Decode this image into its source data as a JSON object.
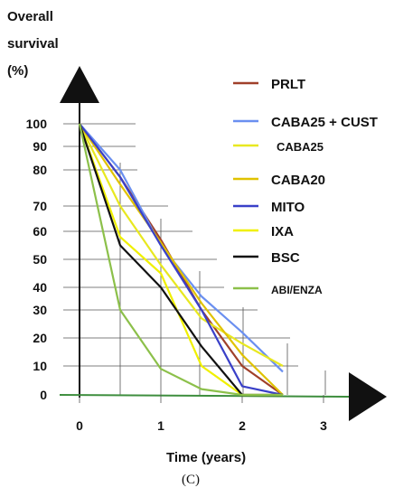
{
  "chart_data": {
    "type": "line",
    "ylabel_lines": [
      "Overall",
      "survival",
      "(%)"
    ],
    "xlabel": "Time (years)",
    "panel_label": "(C)",
    "x_ticks": [
      "0",
      "1",
      "2",
      "3"
    ],
    "y_ticks": [
      "100",
      "90",
      "80",
      "70",
      "60",
      "50",
      "40",
      "30",
      "20",
      "10",
      "0"
    ],
    "xlim": [
      0,
      3
    ],
    "ylim": [
      0,
      100
    ],
    "legend_position": "right",
    "grid": "partial horizontal and vertical reference lines",
    "series": [
      {
        "name": "PRLT",
        "color": "#a0402a",
        "x": [
          0,
          0.5,
          1,
          1.5,
          2,
          2.5
        ],
        "y": [
          100,
          78,
          57,
          30,
          10,
          0
        ]
      },
      {
        "name": "CABA25 + CUST",
        "color": "#6a8ff0",
        "x": [
          0,
          0.5,
          1,
          1.5,
          2,
          2.5
        ],
        "y": [
          100,
          80,
          55,
          36,
          22,
          8
        ]
      },
      {
        "name": "CABA25",
        "color": "#e8e820",
        "x": [
          0,
          0.5,
          1,
          1.5,
          2,
          2.5
        ],
        "y": [
          100,
          70,
          48,
          27,
          18,
          10
        ]
      },
      {
        "name": "CABA20",
        "color": "#e0c200",
        "x": [
          0,
          0.5,
          1,
          1.5,
          2,
          2.5
        ],
        "y": [
          100,
          76,
          56,
          33,
          14,
          0
        ]
      },
      {
        "name": "MITO",
        "color": "#3a40c8",
        "x": [
          0,
          0.5,
          1,
          1.5,
          2,
          2.5
        ],
        "y": [
          100,
          78,
          55,
          30,
          3,
          0
        ]
      },
      {
        "name": "IXA",
        "color": "#f0f000",
        "x": [
          0,
          0.5,
          1,
          1.5,
          2,
          2.5
        ],
        "y": [
          100,
          58,
          45,
          10,
          0,
          0
        ]
      },
      {
        "name": "BSC",
        "color": "#111111",
        "x": [
          0,
          0.5,
          1,
          1.5,
          2,
          2.5
        ],
        "y": [
          100,
          55,
          40,
          17,
          0,
          0
        ]
      },
      {
        "name": "ABI/ENZA",
        "color": "#8cc04a",
        "x": [
          0,
          0.5,
          1,
          1.5,
          2,
          2.5
        ],
        "y": [
          100,
          30,
          9,
          2,
          0,
          0
        ]
      }
    ]
  }
}
